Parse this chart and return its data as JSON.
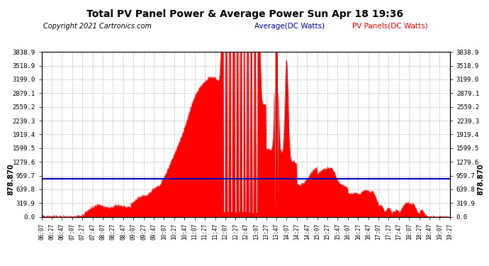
{
  "title": "Total PV Panel Power & Average Power Sun Apr 18 19:36",
  "copyright": "Copyright 2021 Cartronics.com",
  "legend_avg": "Average(DC Watts)",
  "legend_pv": "PV Panels(DC Watts)",
  "avg_value": 878.87,
  "avg_label": "878.870",
  "ymax": 3838.9,
  "ymin": 0.0,
  "yticks": [
    0.0,
    319.9,
    639.8,
    959.7,
    1279.6,
    1599.5,
    1919.4,
    2239.3,
    2559.2,
    2879.1,
    3199.0,
    3518.9,
    3838.9
  ],
  "bg_color": "#ffffff",
  "fill_color": "#ff0000",
  "line_color": "#ff0000",
  "avg_line_color": "#0000bb",
  "grid_color": "#bbbbbb",
  "title_color": "#000000",
  "copyright_color": "#000000",
  "avg_legend_color": "#0000bb",
  "pv_legend_color": "#ff0000",
  "xtick_labels": [
    "06:07",
    "06:27",
    "06:47",
    "07:07",
    "07:27",
    "07:47",
    "08:07",
    "08:27",
    "08:47",
    "09:07",
    "09:27",
    "09:47",
    "10:07",
    "10:27",
    "10:47",
    "11:07",
    "11:27",
    "11:47",
    "12:07",
    "12:27",
    "12:47",
    "13:07",
    "13:27",
    "13:47",
    "14:07",
    "14:27",
    "14:47",
    "15:07",
    "15:27",
    "15:47",
    "16:07",
    "16:27",
    "16:47",
    "17:07",
    "17:27",
    "17:47",
    "18:07",
    "18:27",
    "18:47",
    "19:07",
    "19:27"
  ]
}
